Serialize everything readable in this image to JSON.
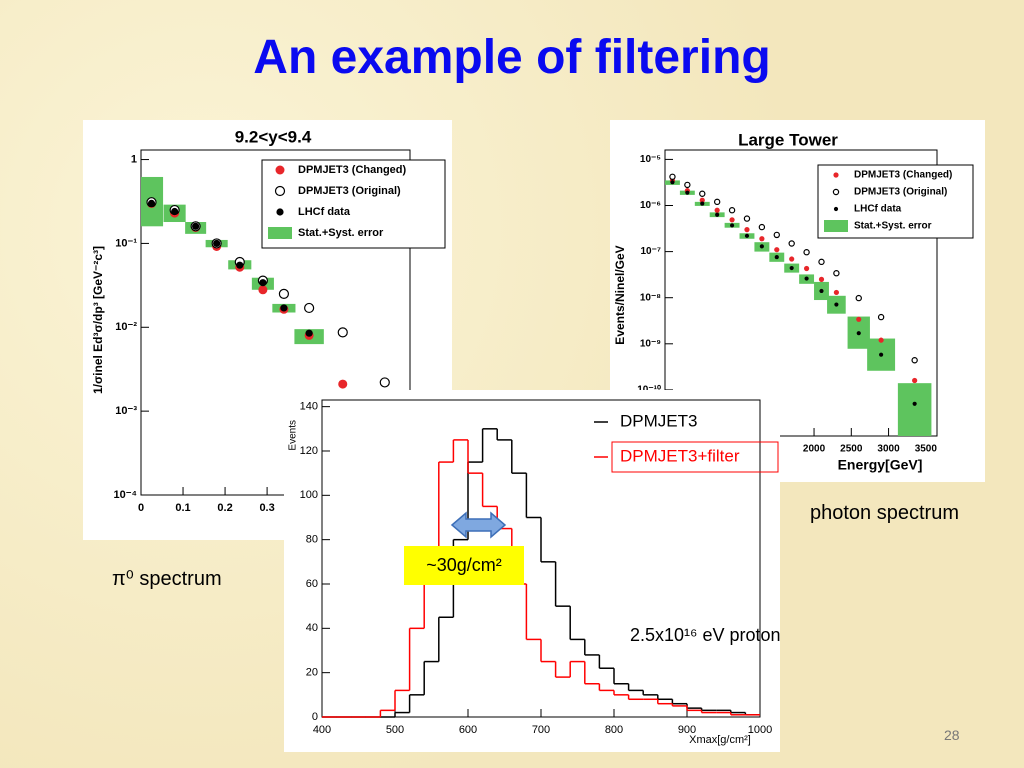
{
  "title": "An example of filtering",
  "captions": [
    "π⁰ spectrum",
    "photon spectrum"
  ],
  "page_number": 28,
  "chart_data": [
    {
      "type": "scatter",
      "title": "9.2<y<9.4",
      "y_label": "1/σinel Ed³σ/dp³ [GeV⁻²c³]",
      "ylog": true,
      "x": [
        0.025,
        0.08,
        0.13,
        0.18,
        0.235,
        0.29,
        0.34,
        0.4,
        0.48,
        0.58
      ],
      "xlim": [
        0,
        0.64
      ],
      "xticks": [
        0,
        0.1,
        0.2,
        0.3
      ],
      "ylim": [
        0.0001,
        1.3
      ],
      "yticks": [
        {
          "value": 0.0001,
          "label": "10⁻⁴"
        },
        {
          "value": 0.001,
          "label": "10⁻³"
        },
        {
          "value": 0.01,
          "label": "10⁻²"
        },
        {
          "value": 0.1,
          "label": "10⁻¹"
        },
        1
      ],
      "series": [
        {
          "name": "Stat.+Syst. error",
          "color": "#5ec45e",
          "low": [
            0.16,
            0.18,
            0.13,
            0.09,
            0.049,
            0.028,
            0.015,
            0.0063,
            null,
            null
          ],
          "high": [
            0.62,
            0.29,
            0.18,
            0.11,
            0.063,
            0.039,
            0.019,
            0.0095,
            null,
            null
          ]
        },
        {
          "name": "DPMJET3 (Changed)",
          "color": "#e8262a",
          "marker": "filled",
          "values": [
            0.3,
            0.23,
            0.155,
            0.092,
            0.052,
            0.028,
            0.0164,
            0.008,
            0.0021,
            null
          ]
        },
        {
          "name": "DPMJET3 (Original)",
          "color": "#000000",
          "marker": "open",
          "values": [
            0.31,
            0.25,
            0.16,
            0.1,
            0.06,
            0.036,
            0.025,
            0.017,
            0.0087,
            0.0022
          ]
        },
        {
          "name": "LHCf data",
          "color": "#000000",
          "marker": "dot",
          "values": [
            0.3,
            0.24,
            0.16,
            0.1,
            0.055,
            0.034,
            0.017,
            0.0085,
            null,
            null
          ]
        }
      ]
    },
    {
      "type": "scatter",
      "title": "Large Tower",
      "x_label": "Energy[GeV]",
      "y_label": "Events/Ninel/GeV",
      "ylog": true,
      "x": [
        100,
        300,
        500,
        700,
        900,
        1100,
        1300,
        1500,
        1700,
        1900,
        2100,
        2300,
        2600,
        2900,
        3350
      ],
      "xlim": [
        0,
        3650
      ],
      "xticks": [
        2000,
        2500,
        3000,
        3500
      ],
      "ylim": [
        1e-11,
        1.6e-05
      ],
      "yticks": [
        {
          "value": 1e-10,
          "label": "10⁻¹⁰"
        },
        {
          "value": 1e-09,
          "label": "10⁻⁹"
        },
        {
          "value": 1e-08,
          "label": "10⁻⁸"
        },
        {
          "value": 1e-07,
          "label": "10⁻⁷"
        },
        {
          "value": 1e-06,
          "label": "10⁻⁶"
        },
        {
          "value": 1e-05,
          "label": "10⁻⁵"
        }
      ],
      "series": [
        {
          "name": "Stat.+Syst. error",
          "color": "#5ec45e",
          "low": [
            2.8e-06,
            1.7e-06,
            9.8e-07,
            5.6e-07,
            3.3e-07,
            1.9e-07,
            1e-07,
            6e-08,
            3.5e-08,
            2e-08,
            8.9e-09,
            4.5e-09,
            7.8e-10,
            2.6e-10,
            1e-11
          ],
          "high": [
            3.5e-06,
            2.1e-06,
            1.2e-06,
            7.1e-07,
            4.2e-07,
            2.5e-07,
            1.6e-07,
            9.5e-08,
            5.5e-08,
            3.2e-08,
            2.2e-08,
            1.1e-08,
            3.9e-09,
            1.3e-09,
            1.4e-10
          ]
        },
        {
          "name": "DPMJET3 (Changed)",
          "color": "#e8262a",
          "marker": "filled",
          "values": [
            3.5e-06,
            2.1e-06,
            1.3e-06,
            7.9e-07,
            4.9e-07,
            3e-07,
            1.9e-07,
            1.1e-07,
            6.9e-08,
            4.3e-08,
            2.5e-08,
            1.3e-08,
            3.4e-09,
            1.2e-09,
            1.6e-10
          ]
        },
        {
          "name": "DPMJET3 (Original)",
          "color": "#000000",
          "marker": "open",
          "values": [
            4.2e-06,
            2.8e-06,
            1.8e-06,
            1.2e-06,
            7.9e-07,
            5.2e-07,
            3.4e-07,
            2.3e-07,
            1.5e-07,
            9.7e-08,
            6e-08,
            3.4e-08,
            9.8e-09,
            3.8e-09,
            4.4e-10
          ]
        },
        {
          "name": "LHCf data",
          "color": "#000000",
          "marker": "dot",
          "values": [
            3.2e-06,
            1.9e-06,
            1.1e-06,
            6.3e-07,
            3.7e-07,
            2.2e-07,
            1.3e-07,
            7.6e-08,
            4.4e-08,
            2.6e-08,
            1.4e-08,
            7.1e-09,
            1.7e-09,
            5.8e-10,
            5e-11
          ]
        }
      ]
    },
    {
      "type": "histogram",
      "x_label": "Xmax[g/cm²]",
      "y_label": "Events",
      "bins": [
        400,
        420,
        440,
        460,
        480,
        500,
        520,
        540,
        560,
        580,
        600,
        620,
        640,
        660,
        680,
        700,
        720,
        740,
        760,
        780,
        800,
        820,
        840,
        860,
        880,
        900,
        920,
        940,
        960,
        980,
        1000
      ],
      "xlim": [
        400,
        1000
      ],
      "xticks": [
        400,
        500,
        600,
        700,
        800,
        900,
        1000
      ],
      "ylim": [
        0,
        143
      ],
      "yticks": [
        0,
        20,
        40,
        60,
        80,
        100,
        120,
        140
      ],
      "series": [
        {
          "name": "DPMJET3",
          "color": "#000000",
          "values": [
            0,
            0,
            0,
            0,
            0,
            2,
            10,
            25,
            45,
            80,
            115,
            130,
            125,
            110,
            90,
            70,
            50,
            35,
            28,
            22,
            15,
            12,
            10,
            8,
            6,
            4,
            3,
            3,
            2,
            1
          ]
        },
        {
          "name": "DPMJET3+filter",
          "color": "#ff0000",
          "values": [
            0,
            0,
            0,
            0,
            3,
            12,
            40,
            75,
            115,
            125,
            110,
            95,
            85,
            60,
            35,
            25,
            18,
            25,
            15,
            12,
            10,
            8,
            8,
            6,
            5,
            3,
            2,
            2,
            1,
            1
          ]
        }
      ],
      "annotations": [
        "~30g/cm²",
        "2.5x10¹⁶ eV proton"
      ]
    }
  ]
}
